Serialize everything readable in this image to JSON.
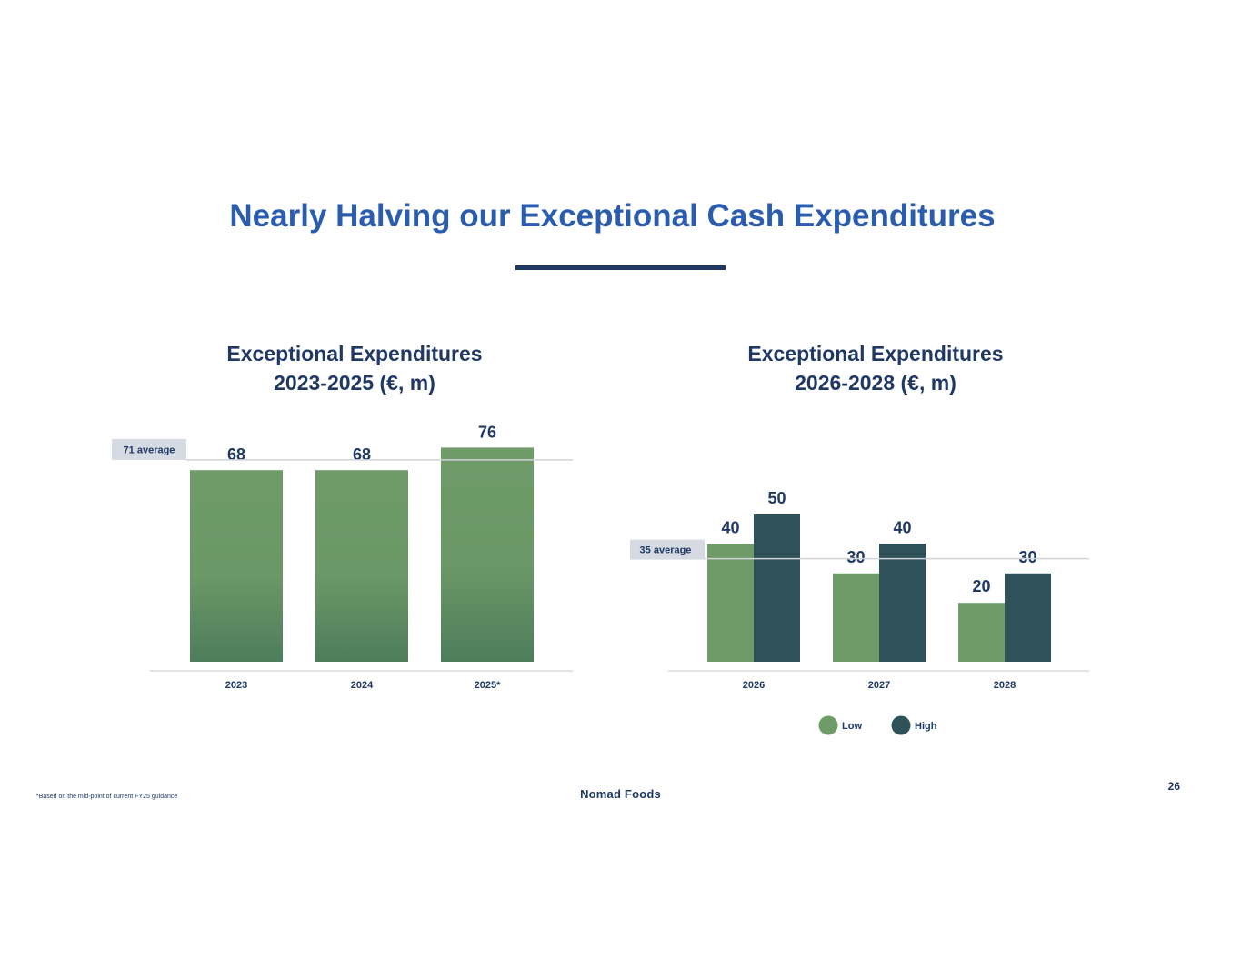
{
  "slide": {
    "title": "Nearly Halving our Exceptional Cash Expenditures",
    "footnote": "*Based on the mid-point of current FY25 guidance",
    "brand": "Nomad Foods",
    "page_number": "26"
  },
  "colors": {
    "title": "#2a5db0",
    "text_dark": "#1f3864",
    "low": "#6e9b68",
    "low_dark": "#4e7d5c",
    "high": "#2f525a",
    "average_badge": "#d6dae2",
    "average_line": "#d0d4da"
  },
  "chart_data": [
    {
      "type": "bar",
      "title_lines": [
        "Exceptional Expenditures",
        "2023-2025 (€, m)"
      ],
      "categories": [
        "2023",
        "2024",
        "2025*"
      ],
      "values": [
        68,
        68,
        76
      ],
      "value_labels": [
        "68",
        "68",
        "76"
      ],
      "average": {
        "value": 71,
        "label": "71 average"
      },
      "grid": false,
      "legend": null
    },
    {
      "type": "bar",
      "title_lines": [
        "Exceptional Expenditures",
        "2026-2028 (€, m)"
      ],
      "categories": [
        "2026",
        "2027",
        "2028"
      ],
      "series": [
        {
          "name": "Low",
          "values": [
            40,
            30,
            20
          ],
          "value_labels": [
            "40",
            "30",
            "20"
          ]
        },
        {
          "name": "High",
          "values": [
            50,
            40,
            30
          ],
          "value_labels": [
            "50",
            "40",
            "30"
          ]
        }
      ],
      "average": {
        "value": 35,
        "label": "35 average"
      },
      "grid": false,
      "legend": "bottom-center"
    }
  ]
}
